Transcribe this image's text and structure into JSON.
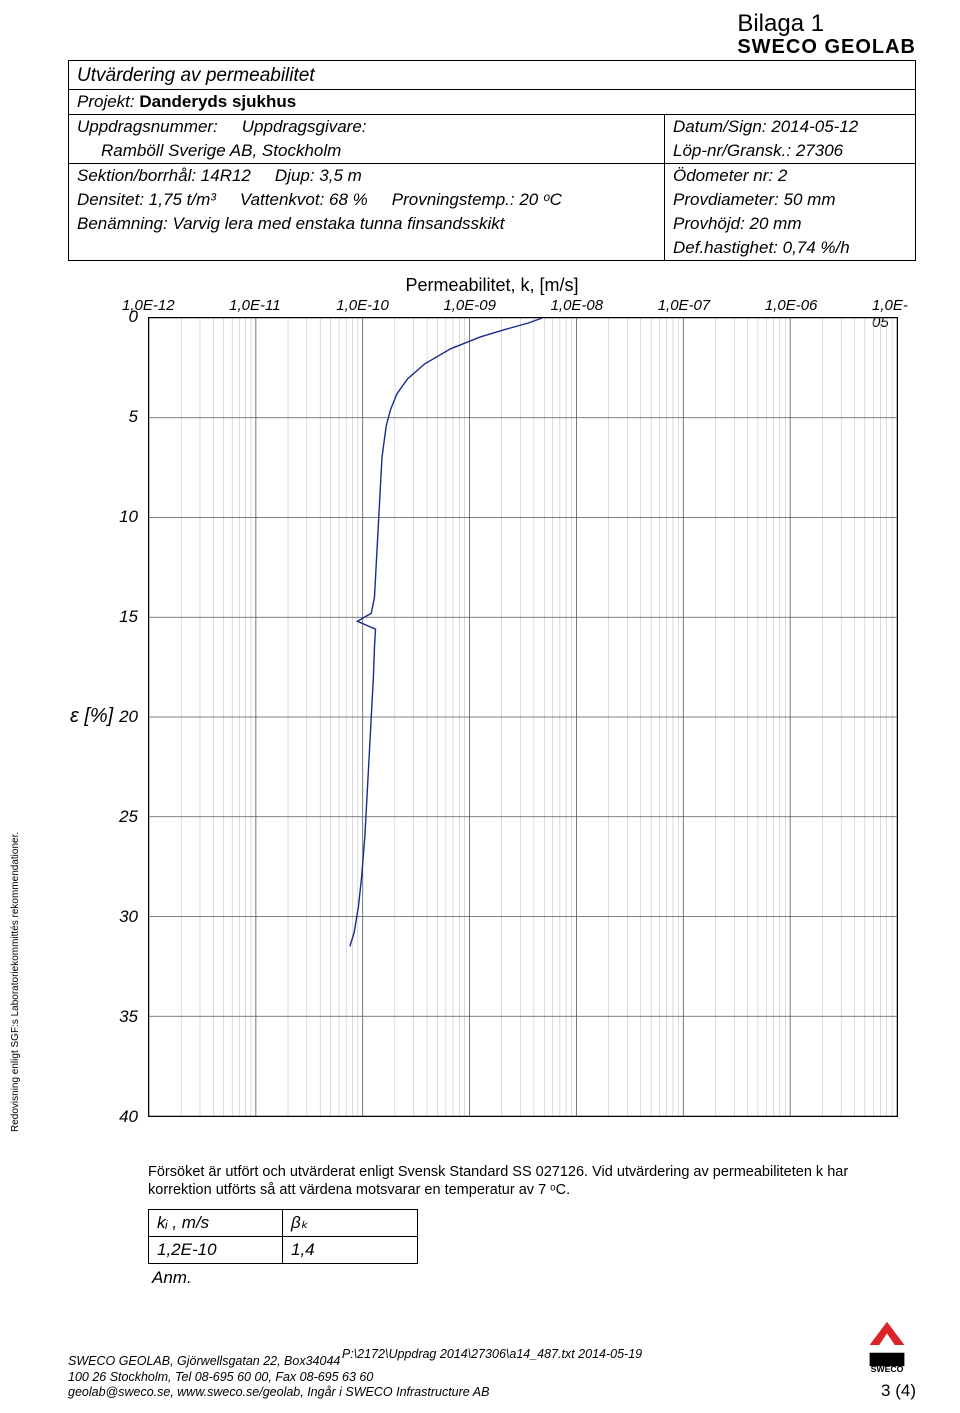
{
  "top": {
    "appendix": "Bilaga 1",
    "brand": "SWECO GEOLAB"
  },
  "header": {
    "title": "Utvärdering av permeabilitet",
    "project_label": "Projekt:",
    "project_value": "Danderyds sjukhus",
    "left_rows": [
      [
        "Uppdragsnummer:",
        "Uppdragsgivare:"
      ],
      [
        "",
        "Ramböll Sverige AB, Stockholm"
      ],
      [
        "Sektion/borrhål: 14R12",
        "Djup: 3,5 m"
      ],
      [
        "Densitet: 1,75 t/m³",
        "Vattenkvot: 68 %",
        "Provningstemp.: 20 ᵒC"
      ],
      [
        "Benämning: Varvig lera med enstaka tunna finsandsskikt"
      ]
    ],
    "right_rows": [
      "Datum/Sign: 2014-05-12",
      "Löp-nr/Gransk.: 27306",
      "Ödometer nr:  2",
      "Provdiameter:  50 mm",
      "Provhöjd: 20 mm",
      "Def.hastighet: 0,74 %/h"
    ]
  },
  "chart": {
    "title": "Permeabilitet, k, [m/s]",
    "x_labels": [
      "1,0E-12",
      "1,0E-11",
      "1,0E-10",
      "1,0E-09",
      "1,0E-08",
      "1,0E-07",
      "1,0E-06",
      "1,0E-05"
    ],
    "y_range": [
      0,
      40
    ],
    "y_step": 5,
    "y_axis_label": "ε [%]",
    "curve_color": "#1a2b8b",
    "grid_color": "#b8b8b8",
    "grid_major_color": "#555555",
    "background_color": "#ffffff",
    "curve_points": [
      [
        -8.32,
        0.0
      ],
      [
        -8.45,
        0.25
      ],
      [
        -8.65,
        0.55
      ],
      [
        -8.9,
        0.95
      ],
      [
        -9.18,
        1.55
      ],
      [
        -9.42,
        2.3
      ],
      [
        -9.58,
        3.05
      ],
      [
        -9.68,
        3.8
      ],
      [
        -9.74,
        4.6
      ],
      [
        -9.78,
        5.4
      ],
      [
        -9.8,
        6.2
      ],
      [
        -9.82,
        7.0
      ],
      [
        -9.83,
        8.0
      ],
      [
        -9.84,
        9.0
      ],
      [
        -9.85,
        10.0
      ],
      [
        -9.86,
        11.0
      ],
      [
        -9.87,
        12.0
      ],
      [
        -9.88,
        13.0
      ],
      [
        -9.89,
        14.0
      ],
      [
        -9.92,
        14.8
      ],
      [
        -10.05,
        15.2
      ],
      [
        -9.88,
        15.6
      ],
      [
        -9.89,
        16.5
      ],
      [
        -9.9,
        18.0
      ],
      [
        -9.92,
        20.0
      ],
      [
        -9.94,
        22.0
      ],
      [
        -9.96,
        24.0
      ],
      [
        -9.98,
        26.0
      ],
      [
        -10.01,
        28.0
      ],
      [
        -10.04,
        29.5
      ],
      [
        -10.08,
        30.8
      ],
      [
        -10.12,
        31.5
      ]
    ]
  },
  "side_text": "Redovisning enligt SGF:s Laboratoriekommittés rekommendationer.",
  "footnote": "Försöket är utfört och utvärderat enligt Svensk Standard SS 027126. Vid utvärdering av permeabiliteten k har korrektion utförts så att värdena motsvarar en temperatur av 7 ᵒC.",
  "coef": {
    "k_label": "kᵢ , m/s",
    "beta_label": "βₖ",
    "k_value": "1,2E-10",
    "beta_value": "1,4"
  },
  "anm": "Anm.",
  "footer": {
    "left": "SWECO GEOLAB, Gjörwellsgatan 22, Box34044\n100 26 Stockholm, Tel 08-695 60 00, Fax 08-695 63 60\ngeolab@sweco.se, www.sweco.se/geolab, Ingår i SWECO Infrastructure AB",
    "center": "P:\\2172\\Uppdrag 2014\\27306\\a14_487.txt 2014-05-19",
    "page": "3 (4)"
  }
}
